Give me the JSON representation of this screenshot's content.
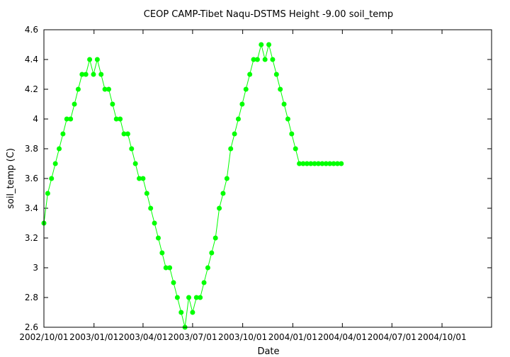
{
  "chart_data": {
    "type": "line",
    "title": "CEOP CAMP-Tibet Naqu-DSTMS Height -9.00 soil_temp",
    "xlabel": "Date",
    "ylabel": "soil_temp (C)",
    "xlim": [
      "2002-10-01",
      "2004-12-31"
    ],
    "ylim": [
      2.6,
      4.6
    ],
    "grid": false,
    "x_ticks": [
      "2002-10-01",
      "2003-01-01",
      "2003-04-01",
      "2003-07-01",
      "2003-10-01",
      "2004-01-01",
      "2004-04-01",
      "2004-07-01",
      "2004-10-01"
    ],
    "x_tick_labels": [
      "2002/10/01",
      "2003/01/01",
      "2003/04/01",
      "2003/07/01",
      "2003/10/01",
      "2004/01/01",
      "2004/04/01",
      "2004/07/01",
      "2004/10/01"
    ],
    "y_ticks": [
      2.6,
      2.8,
      3.0,
      3.2,
      3.4,
      3.6,
      3.8,
      4.0,
      4.2,
      4.4,
      4.6
    ],
    "y_tick_labels": [
      "2.6",
      "2.8",
      "3",
      "3.2",
      "3.4",
      "3.6",
      "3.8",
      "4",
      "4.2",
      "4.4",
      "4.6"
    ],
    "series": [
      {
        "color": "#00ff00",
        "x": [
          "2002-10-01",
          "2002-10-08",
          "2002-10-15",
          "2002-10-22",
          "2002-10-29",
          "2002-11-05",
          "2002-11-12",
          "2002-11-19",
          "2002-11-26",
          "2002-12-03",
          "2002-12-10",
          "2002-12-17",
          "2002-12-24",
          "2002-12-31",
          "2003-01-07",
          "2003-01-14",
          "2003-01-21",
          "2003-01-28",
          "2003-02-04",
          "2003-02-11",
          "2003-02-18",
          "2003-02-25",
          "2003-03-04",
          "2003-03-11",
          "2003-03-18",
          "2003-03-25",
          "2003-04-01",
          "2003-04-08",
          "2003-04-15",
          "2003-04-22",
          "2003-04-29",
          "2003-05-06",
          "2003-05-13",
          "2003-05-20",
          "2003-05-27",
          "2003-06-03",
          "2003-06-10",
          "2003-06-17",
          "2003-06-24",
          "2003-07-01",
          "2003-07-08",
          "2003-07-15",
          "2003-07-22",
          "2003-07-29",
          "2003-08-05",
          "2003-08-12",
          "2003-08-19",
          "2003-08-26",
          "2003-09-02",
          "2003-09-09",
          "2003-09-16",
          "2003-09-23",
          "2003-09-30",
          "2003-10-07",
          "2003-10-14",
          "2003-10-21",
          "2003-10-28",
          "2003-11-04",
          "2003-11-11",
          "2003-11-18",
          "2003-11-25",
          "2003-12-02",
          "2003-12-09",
          "2003-12-16",
          "2003-12-23",
          "2003-12-30",
          "2004-01-06",
          "2004-01-13",
          "2004-01-20",
          "2004-01-27",
          "2004-02-03",
          "2004-02-10",
          "2004-02-17",
          "2004-02-24",
          "2004-03-02",
          "2004-03-09",
          "2004-03-16",
          "2004-03-23",
          "2004-03-30"
        ],
        "y": [
          3.3,
          3.5,
          3.6,
          3.7,
          3.8,
          3.9,
          4.0,
          4.0,
          4.1,
          4.2,
          4.3,
          4.3,
          4.4,
          4.3,
          4.4,
          4.3,
          4.2,
          4.2,
          4.1,
          4.0,
          4.0,
          3.9,
          3.9,
          3.8,
          3.7,
          3.6,
          3.6,
          3.5,
          3.4,
          3.3,
          3.2,
          3.1,
          3.0,
          3.0,
          2.9,
          2.8,
          2.7,
          2.6,
          2.8,
          2.7,
          2.8,
          2.8,
          2.9,
          3.0,
          3.1,
          3.2,
          3.4,
          3.5,
          3.6,
          3.8,
          3.9,
          4.0,
          4.1,
          4.2,
          4.3,
          4.4,
          4.4,
          4.5,
          4.4,
          4.5,
          4.4,
          4.3,
          4.2,
          4.1,
          4.0,
          3.9,
          3.8,
          3.7,
          3.7,
          3.7,
          3.7,
          3.7,
          3.7,
          3.7,
          3.7,
          3.7,
          3.7,
          3.7,
          3.7
        ]
      }
    ]
  }
}
